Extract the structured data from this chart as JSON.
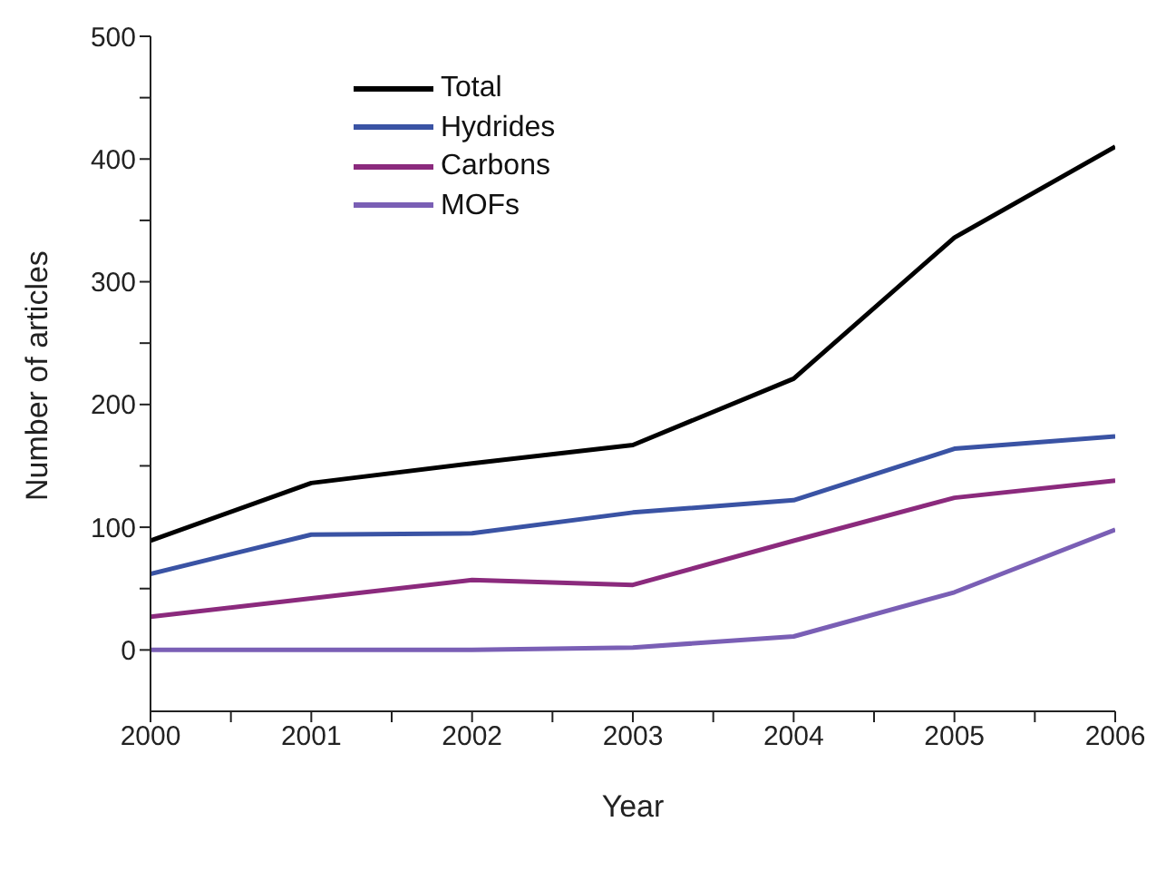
{
  "chart_data": {
    "type": "line",
    "xlabel": "Year",
    "ylabel": "Number of articles",
    "x": [
      2000,
      2001,
      2002,
      2003,
      2004,
      2005,
      2006
    ],
    "series": [
      {
        "name": "Total",
        "color": "#000000",
        "values": [
          89,
          136,
          152,
          167,
          221,
          336,
          410
        ]
      },
      {
        "name": "Hydrides",
        "color": "#3a53a4",
        "values": [
          62,
          94,
          95,
          112,
          122,
          164,
          174
        ]
      },
      {
        "name": "Carbons",
        "color": "#8b2a7d",
        "values": [
          27,
          42,
          57,
          53,
          89,
          124,
          138
        ]
      },
      {
        "name": "MOFs",
        "color": "#7a5fb5",
        "values": [
          0,
          0,
          0,
          2,
          11,
          47,
          98
        ]
      }
    ],
    "xlim": [
      2000,
      2006
    ],
    "xticks": [
      2000,
      {
        "value": 2000.5,
        "label": null
      },
      2001,
      {
        "value": 2001.5,
        "label": null
      },
      2002,
      {
        "value": 2002.5,
        "label": null
      },
      2003,
      {
        "value": 2003.5,
        "label": null
      },
      2004,
      {
        "value": 2004.5,
        "label": null
      },
      2005,
      {
        "value": 2005.5,
        "label": null
      },
      2006
    ],
    "ylim": [
      -50,
      500
    ],
    "yticks": [
      0,
      {
        "value": 50,
        "label": null
      },
      100,
      {
        "value": 150,
        "label": null
      },
      200,
      {
        "value": 250,
        "label": null
      },
      300,
      {
        "value": 350,
        "label": null
      },
      400,
      {
        "value": 450,
        "label": null
      },
      500
    ],
    "grid": false,
    "legend": "top left",
    "marker": "none",
    "line_style": "solid"
  }
}
